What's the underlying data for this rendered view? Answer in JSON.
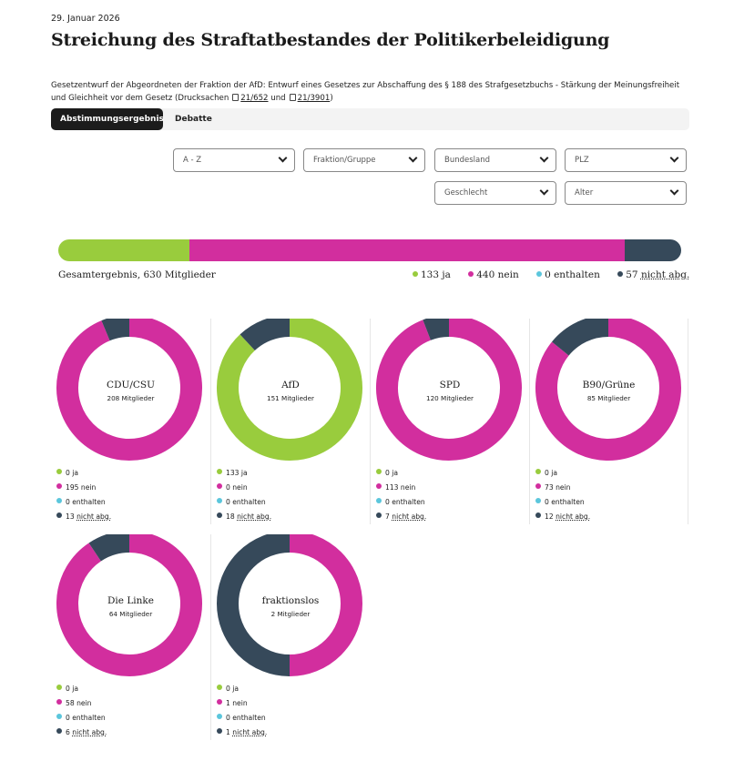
{
  "date": "29. Januar 2026",
  "title": "Streichung des Straftatbestandes der Politikerbeleidigung",
  "description": {
    "text": "Gesetzentwurf der Abgeordneten der Fraktion der AfD: Entwurf eines Gesetzes zur Abschaffung des § 188 des Strafgesetzbuchs - Stärkung der Meinungsfreiheit und Gleichheit vor dem Gesetz (Drucksachen",
    "doc1": "21/652",
    "and": "und",
    "doc2": "21/3901",
    "close": ")"
  },
  "tabs": [
    {
      "label": "Abstimmungsergebnis",
      "active": true
    },
    {
      "label": "Debatte",
      "active": false
    }
  ],
  "filters": [
    {
      "label": "A - Z"
    },
    {
      "label": "Fraktion/Gruppe"
    },
    {
      "label": "Bundesland"
    },
    {
      "label": "PLZ"
    },
    {
      "label": "Geschlecht"
    },
    {
      "label": "Alter"
    }
  ],
  "colors": {
    "ja": "#99cc3d",
    "nein": "#d22e9e",
    "enthalten": "#5bc6dc",
    "nicht_abg": "#36495a"
  },
  "total": {
    "label": "Gesamtergebnis, 630 Mitglieder",
    "ja": 133,
    "nein": 440,
    "enthalten": 0,
    "nicht_abg": 57,
    "ja_label": "133 ja",
    "nein_label": "440 nein",
    "enthalten_label": "0 enthalten",
    "nicht_abg_num": "57",
    "nicht_abg_abbr": "nicht abg."
  },
  "groups": [
    {
      "name": "CDU/CSU",
      "members_label": "208 Mitglieder",
      "ja": 0,
      "nein": 195,
      "enthalten": 0,
      "nicht_abg": 13,
      "ja_label": "0 ja",
      "nein_label": "195 nein",
      "enthalten_label": "0 enthalten",
      "nicht_abg_num": "13",
      "nicht_abg_abbr": "nicht abg."
    },
    {
      "name": "AfD",
      "members_label": "151 Mitglieder",
      "ja": 133,
      "nein": 0,
      "enthalten": 0,
      "nicht_abg": 18,
      "ja_label": "133 ja",
      "nein_label": "0 nein",
      "enthalten_label": "0 enthalten",
      "nicht_abg_num": "18",
      "nicht_abg_abbr": "nicht abg."
    },
    {
      "name": "SPD",
      "members_label": "120 Mitglieder",
      "ja": 0,
      "nein": 113,
      "enthalten": 0,
      "nicht_abg": 7,
      "ja_label": "0 ja",
      "nein_label": "113 nein",
      "enthalten_label": "0 enthalten",
      "nicht_abg_num": "7",
      "nicht_abg_abbr": "nicht abg."
    },
    {
      "name": "B90/Grüne",
      "members_label": "85 Mitglieder",
      "ja": 0,
      "nein": 73,
      "enthalten": 0,
      "nicht_abg": 12,
      "ja_label": "0 ja",
      "nein_label": "73 nein",
      "enthalten_label": "0 enthalten",
      "nicht_abg_num": "12",
      "nicht_abg_abbr": "nicht abg."
    },
    {
      "name": "Die Linke",
      "members_label": "64 Mitglieder",
      "ja": 0,
      "nein": 58,
      "enthalten": 0,
      "nicht_abg": 6,
      "ja_label": "0 ja",
      "nein_label": "58 nein",
      "enthalten_label": "0 enthalten",
      "nicht_abg_num": "6",
      "nicht_abg_abbr": "nicht abg."
    },
    {
      "name": "fraktionslos",
      "members_label": "2 Mitglieder",
      "ja": 0,
      "nein": 1,
      "enthalten": 0,
      "nicht_abg": 1,
      "ja_label": "0 ja",
      "nein_label": "1 nein",
      "enthalten_label": "0 enthalten",
      "nicht_abg_num": "1",
      "nicht_abg_abbr": "nicht abg."
    }
  ]
}
